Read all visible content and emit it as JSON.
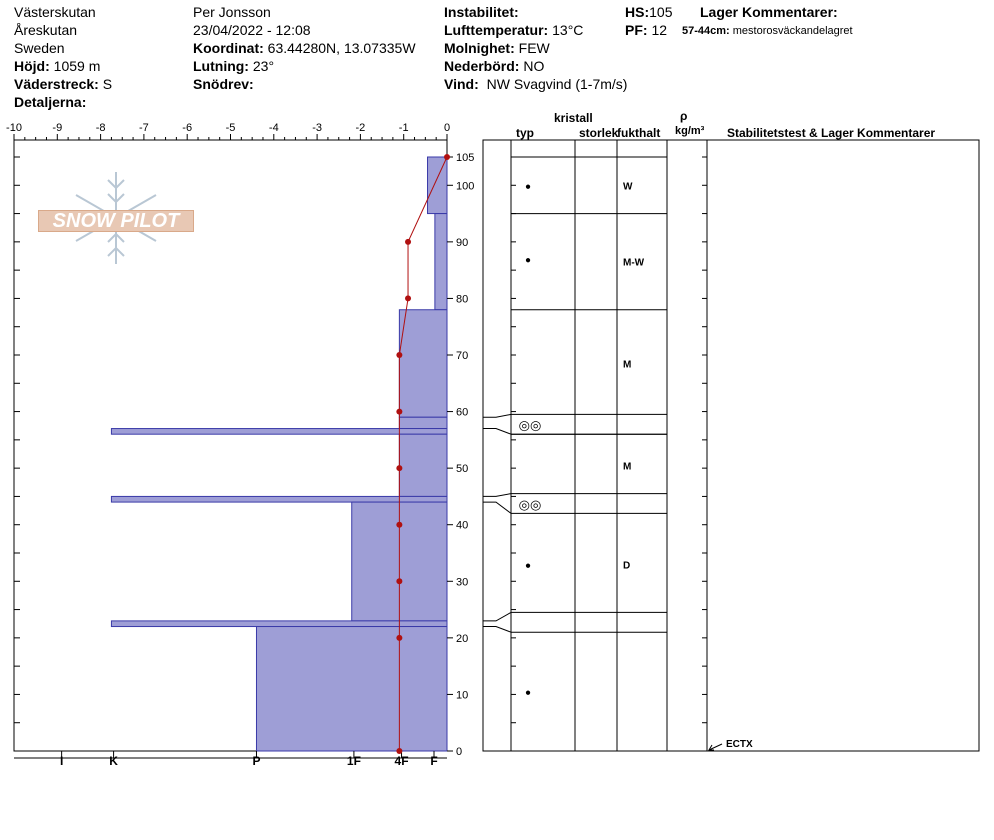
{
  "header": {
    "site": "Västerskutan",
    "area": "Åreskutan",
    "country": "Sweden",
    "elevation_label": "Höjd:",
    "elevation_value": "1059 m",
    "aspect_label": "Väderstreck:",
    "aspect_value": "S",
    "details_label": "Detaljerna:",
    "observer": "Per Jonsson",
    "datetime": "23/04/2022 - 12:08",
    "coord_label": "Koordinat:",
    "coord_value": "63.44280N, 13.07335W",
    "slope_label": "Lutning:",
    "slope_value": "23°",
    "drift_label": "Snödrev:",
    "instability_label": "Instabilitet:",
    "airtemp_label": "Lufttemperatur:",
    "airtemp_value": "13°C",
    "cloud_label": "Molnighet:",
    "cloud_value": "FEW",
    "precip_label": "Nederbörd:",
    "precip_value": "NO",
    "wind_label": "Vind:",
    "wind_value": "NW Svagvind (1-7m/s)",
    "hs_label": "HS:",
    "hs_value": "105",
    "pf_label": "PF:",
    "pf_value": "12",
    "layer_comments_label": "Lager Kommentarer:",
    "layer_comment_range": "57-44cm:",
    "layer_comment_text": "mestorosväckandelagret"
  },
  "logo": {
    "text": "SNOW PILOT"
  },
  "columns": {
    "crystal": "kristall",
    "type": "typ",
    "size": "storlek",
    "moisture": "fukthalt",
    "rho": "ρ",
    "density_unit": "kg/m³",
    "stability": "Stabilitetstest & Lager Kommentarer"
  },
  "colors": {
    "hardness_fill": "#9e9ed6",
    "hardness_stroke": "#3a3aa8",
    "temp_line": "#b01010"
  },
  "chart_data": {
    "type": "bar",
    "temperature_axis": {
      "ticks": [
        -10,
        -9,
        -8,
        -7,
        -6,
        -5,
        -4,
        -3,
        -2,
        -1,
        0
      ],
      "tick_labels": [
        "-10",
        "-9",
        "-8",
        "-7",
        "-6",
        "-5",
        "-4",
        "-3",
        "-2",
        "-1",
        "0"
      ],
      "range": [
        -10,
        0
      ]
    },
    "height_axis": {
      "range": [
        0,
        105
      ],
      "tick_labels": [
        "0",
        "10",
        "20",
        "30",
        "40",
        "50",
        "60",
        "70",
        "80",
        "90",
        "100",
        "105"
      ],
      "ticks": [
        0,
        10,
        20,
        30,
        40,
        50,
        60,
        70,
        80,
        90,
        100,
        105
      ]
    },
    "hardness_axis": {
      "labels": [
        "I",
        "K",
        "P",
        "1F",
        "4F",
        "F"
      ],
      "positions": [
        -8.9,
        -7.7,
        -4.4,
        -2.15,
        -1.05,
        -0.3
      ]
    },
    "hardness_layers": [
      {
        "bottom": 95,
        "top": 105,
        "hardness": -0.45
      },
      {
        "bottom": 78,
        "top": 95,
        "hardness": -0.28
      },
      {
        "bottom": 59,
        "top": 78,
        "hardness": -1.1
      },
      {
        "bottom": 57,
        "top": 59,
        "hardness": -1.1
      },
      {
        "bottom": 56,
        "top": 57,
        "hardness": -7.75
      },
      {
        "bottom": 45,
        "top": 56,
        "hardness": -1.1
      },
      {
        "bottom": 44,
        "top": 45,
        "hardness": -7.75
      },
      {
        "bottom": 23,
        "top": 44,
        "hardness": -2.2
      },
      {
        "bottom": 22,
        "top": 23,
        "hardness": -7.75
      },
      {
        "bottom": 0,
        "top": 22,
        "hardness": -4.4
      }
    ],
    "temperature_profile": [
      {
        "height": 105,
        "temp": 0
      },
      {
        "height": 90,
        "temp": -0.9
      },
      {
        "height": 80,
        "temp": -0.9
      },
      {
        "height": 70,
        "temp": -1.1
      },
      {
        "height": 60,
        "temp": -1.1
      },
      {
        "height": 50,
        "temp": -1.1
      },
      {
        "height": 40,
        "temp": -1.1
      },
      {
        "height": 30,
        "temp": -1.1
      },
      {
        "height": 20,
        "temp": -1.1
      },
      {
        "height": 0,
        "temp": -1.1
      }
    ],
    "layer_boundaries": [
      105,
      95,
      78,
      59,
      57,
      56,
      45,
      44,
      23,
      22,
      0
    ],
    "boundary_mappings": [
      {
        "left": 59,
        "right": 59.5
      },
      {
        "left": 57,
        "right": 56
      },
      {
        "left": 45,
        "right": 45.5
      },
      {
        "left": 44,
        "right": 42
      },
      {
        "left": 23,
        "right": 24.5
      },
      {
        "left": 22,
        "right": 21
      }
    ],
    "crystal_markers": [
      {
        "height": 100,
        "symbol": "●"
      },
      {
        "height": 87,
        "symbol": "●"
      },
      {
        "height": 57.5,
        "symbol": "◎◎"
      },
      {
        "height": 43.5,
        "symbol": "◎◎"
      },
      {
        "height": 33,
        "symbol": "●"
      },
      {
        "height": 10.5,
        "symbol": "●"
      }
    ],
    "moisture_labels": [
      {
        "height": 100,
        "text": "W"
      },
      {
        "height": 86.5,
        "text": "M-W"
      },
      {
        "height": 68.5,
        "text": "M"
      },
      {
        "height": 50.5,
        "text": "M"
      },
      {
        "height": 33,
        "text": "D"
      }
    ],
    "stability_tests": [
      {
        "height": 0,
        "text": "ECTX"
      }
    ]
  }
}
